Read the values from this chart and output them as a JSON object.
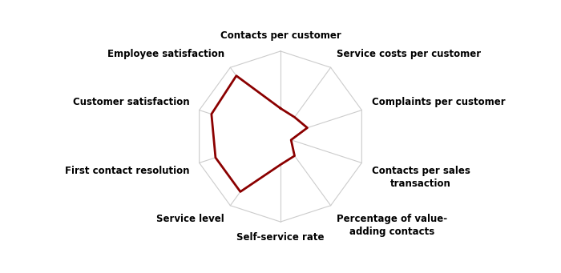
{
  "categories": [
    "Contacts per customer",
    "Service costs per customer",
    "Complaints per customer",
    "Contacts per sales\ntransaction",
    "Percentage of value-\nadding contacts",
    "Self-service rate",
    "Service level",
    "First contact resolution",
    "Customer satisfaction",
    "Employee satisfaction"
  ],
  "values": [
    0.33,
    0.28,
    0.33,
    0.13,
    0.28,
    0.33,
    0.8,
    0.8,
    0.85,
    0.88
  ],
  "num_rings": 5,
  "line_color": "#8B0000",
  "ring_color": "#cccccc",
  "background_color": "#ffffff",
  "line_width": 2.0,
  "label_fontsize": 8.5,
  "figsize": [
    7.0,
    3.41
  ],
  "dpi": 100
}
